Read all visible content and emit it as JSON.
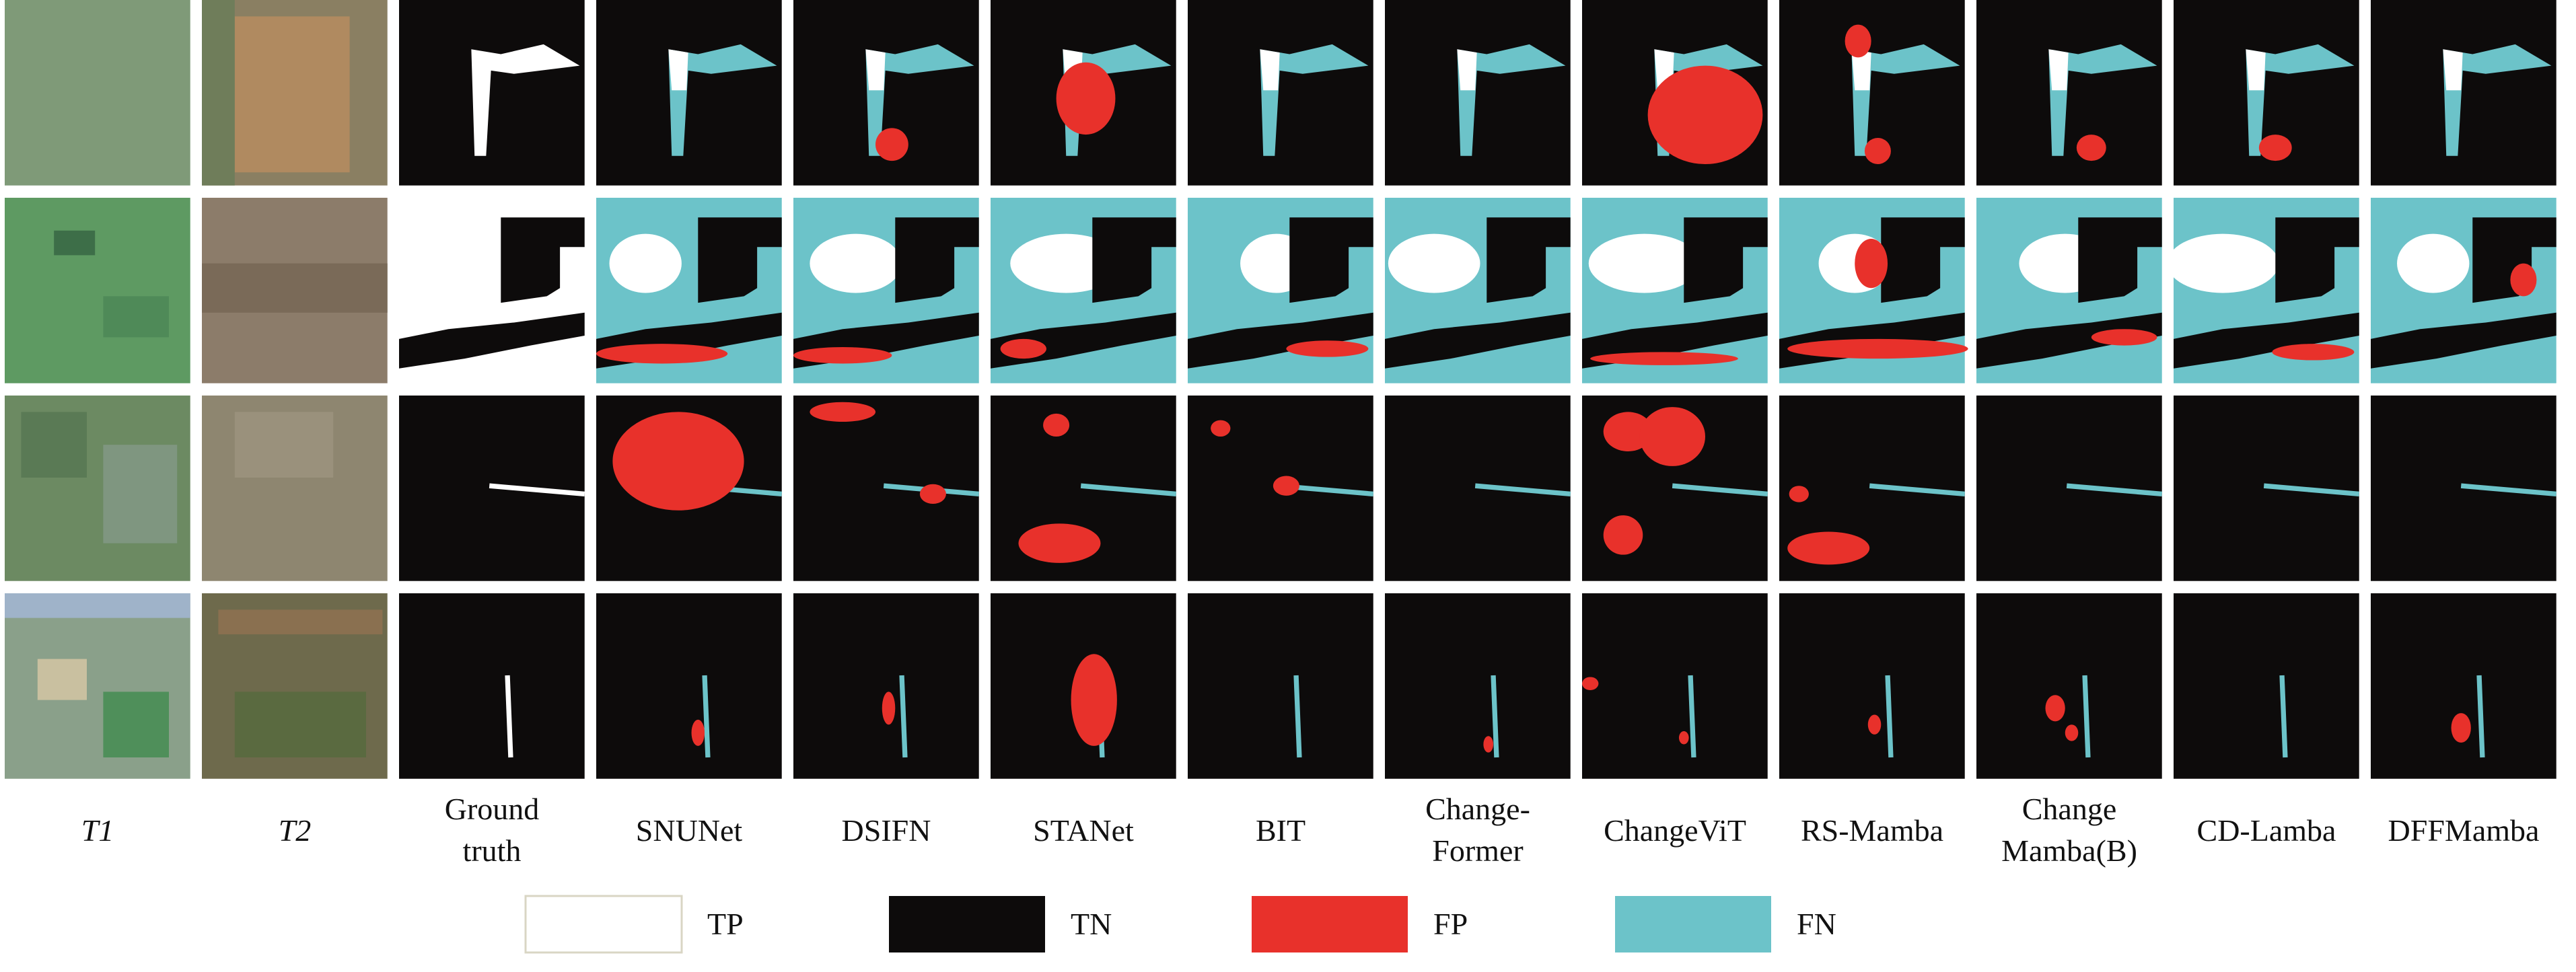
{
  "columns": [
    {
      "lines": [
        "T1"
      ],
      "italic": true
    },
    {
      "lines": [
        "T2"
      ],
      "italic": true
    },
    {
      "lines": [
        "Ground",
        "truth"
      ]
    },
    {
      "lines": [
        "SNUNet"
      ]
    },
    {
      "lines": [
        "DSIFN"
      ]
    },
    {
      "lines": [
        "STANet"
      ]
    },
    {
      "lines": [
        "BIT"
      ]
    },
    {
      "lines": [
        "Change-",
        "Former"
      ]
    },
    {
      "lines": [
        "ChangeViT"
      ]
    },
    {
      "lines": [
        "RS-Mamba"
      ]
    },
    {
      "lines": [
        "Change",
        "Mamba(B)"
      ]
    },
    {
      "lines": [
        "CD-Lamba"
      ]
    },
    {
      "lines": [
        "DFFMamba"
      ]
    }
  ],
  "legend": [
    {
      "label": "TP",
      "color": "#ffffff"
    },
    {
      "label": "TN",
      "color": "#0d0b0b"
    },
    {
      "label": "FP",
      "color": "#e8312b"
    },
    {
      "label": "FN",
      "color": "#6cc3c9"
    }
  ]
}
